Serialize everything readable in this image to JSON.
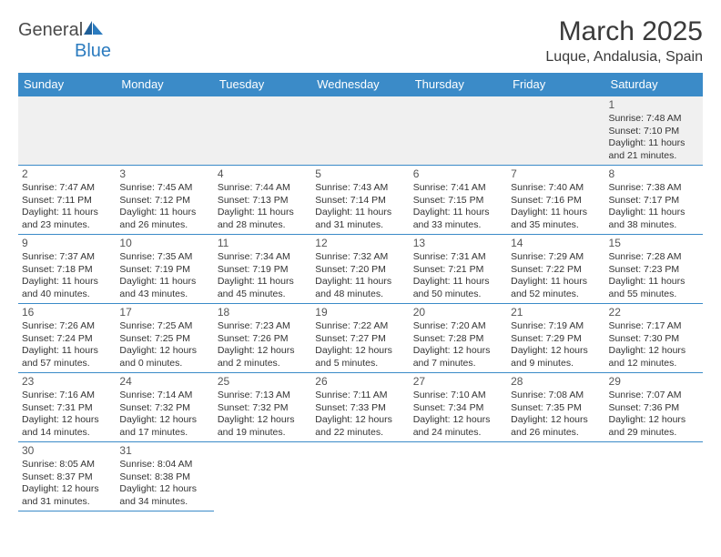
{
  "logo": {
    "word1": "General",
    "word2": "Blue"
  },
  "title": "March 2025",
  "location": "Luque, Andalusia, Spain",
  "colors": {
    "header_bg": "#3b8bc8",
    "header_text": "#ffffff",
    "cell_border": "#3b8bc8",
    "empty_bg": "#f0f0f0",
    "text": "#333333",
    "logo_gray": "#4a4a4a",
    "logo_blue": "#2b7bbf"
  },
  "columns": [
    "Sunday",
    "Monday",
    "Tuesday",
    "Wednesday",
    "Thursday",
    "Friday",
    "Saturday"
  ],
  "weeks": [
    [
      null,
      null,
      null,
      null,
      null,
      null,
      {
        "n": 1,
        "sunrise": "7:48 AM",
        "sunset": "7:10 PM",
        "daylight": "11 hours and 21 minutes."
      }
    ],
    [
      {
        "n": 2,
        "sunrise": "7:47 AM",
        "sunset": "7:11 PM",
        "daylight": "11 hours and 23 minutes."
      },
      {
        "n": 3,
        "sunrise": "7:45 AM",
        "sunset": "7:12 PM",
        "daylight": "11 hours and 26 minutes."
      },
      {
        "n": 4,
        "sunrise": "7:44 AM",
        "sunset": "7:13 PM",
        "daylight": "11 hours and 28 minutes."
      },
      {
        "n": 5,
        "sunrise": "7:43 AM",
        "sunset": "7:14 PM",
        "daylight": "11 hours and 31 minutes."
      },
      {
        "n": 6,
        "sunrise": "7:41 AM",
        "sunset": "7:15 PM",
        "daylight": "11 hours and 33 minutes."
      },
      {
        "n": 7,
        "sunrise": "7:40 AM",
        "sunset": "7:16 PM",
        "daylight": "11 hours and 35 minutes."
      },
      {
        "n": 8,
        "sunrise": "7:38 AM",
        "sunset": "7:17 PM",
        "daylight": "11 hours and 38 minutes."
      }
    ],
    [
      {
        "n": 9,
        "sunrise": "7:37 AM",
        "sunset": "7:18 PM",
        "daylight": "11 hours and 40 minutes."
      },
      {
        "n": 10,
        "sunrise": "7:35 AM",
        "sunset": "7:19 PM",
        "daylight": "11 hours and 43 minutes."
      },
      {
        "n": 11,
        "sunrise": "7:34 AM",
        "sunset": "7:19 PM",
        "daylight": "11 hours and 45 minutes."
      },
      {
        "n": 12,
        "sunrise": "7:32 AM",
        "sunset": "7:20 PM",
        "daylight": "11 hours and 48 minutes."
      },
      {
        "n": 13,
        "sunrise": "7:31 AM",
        "sunset": "7:21 PM",
        "daylight": "11 hours and 50 minutes."
      },
      {
        "n": 14,
        "sunrise": "7:29 AM",
        "sunset": "7:22 PM",
        "daylight": "11 hours and 52 minutes."
      },
      {
        "n": 15,
        "sunrise": "7:28 AM",
        "sunset": "7:23 PM",
        "daylight": "11 hours and 55 minutes."
      }
    ],
    [
      {
        "n": 16,
        "sunrise": "7:26 AM",
        "sunset": "7:24 PM",
        "daylight": "11 hours and 57 minutes."
      },
      {
        "n": 17,
        "sunrise": "7:25 AM",
        "sunset": "7:25 PM",
        "daylight": "12 hours and 0 minutes."
      },
      {
        "n": 18,
        "sunrise": "7:23 AM",
        "sunset": "7:26 PM",
        "daylight": "12 hours and 2 minutes."
      },
      {
        "n": 19,
        "sunrise": "7:22 AM",
        "sunset": "7:27 PM",
        "daylight": "12 hours and 5 minutes."
      },
      {
        "n": 20,
        "sunrise": "7:20 AM",
        "sunset": "7:28 PM",
        "daylight": "12 hours and 7 minutes."
      },
      {
        "n": 21,
        "sunrise": "7:19 AM",
        "sunset": "7:29 PM",
        "daylight": "12 hours and 9 minutes."
      },
      {
        "n": 22,
        "sunrise": "7:17 AM",
        "sunset": "7:30 PM",
        "daylight": "12 hours and 12 minutes."
      }
    ],
    [
      {
        "n": 23,
        "sunrise": "7:16 AM",
        "sunset": "7:31 PM",
        "daylight": "12 hours and 14 minutes."
      },
      {
        "n": 24,
        "sunrise": "7:14 AM",
        "sunset": "7:32 PM",
        "daylight": "12 hours and 17 minutes."
      },
      {
        "n": 25,
        "sunrise": "7:13 AM",
        "sunset": "7:32 PM",
        "daylight": "12 hours and 19 minutes."
      },
      {
        "n": 26,
        "sunrise": "7:11 AM",
        "sunset": "7:33 PM",
        "daylight": "12 hours and 22 minutes."
      },
      {
        "n": 27,
        "sunrise": "7:10 AM",
        "sunset": "7:34 PM",
        "daylight": "12 hours and 24 minutes."
      },
      {
        "n": 28,
        "sunrise": "7:08 AM",
        "sunset": "7:35 PM",
        "daylight": "12 hours and 26 minutes."
      },
      {
        "n": 29,
        "sunrise": "7:07 AM",
        "sunset": "7:36 PM",
        "daylight": "12 hours and 29 minutes."
      }
    ],
    [
      {
        "n": 30,
        "sunrise": "8:05 AM",
        "sunset": "8:37 PM",
        "daylight": "12 hours and 31 minutes."
      },
      {
        "n": 31,
        "sunrise": "8:04 AM",
        "sunset": "8:38 PM",
        "daylight": "12 hours and 34 minutes."
      },
      null,
      null,
      null,
      null,
      null
    ]
  ],
  "labels": {
    "sunrise": "Sunrise:",
    "sunset": "Sunset:",
    "daylight": "Daylight:"
  }
}
